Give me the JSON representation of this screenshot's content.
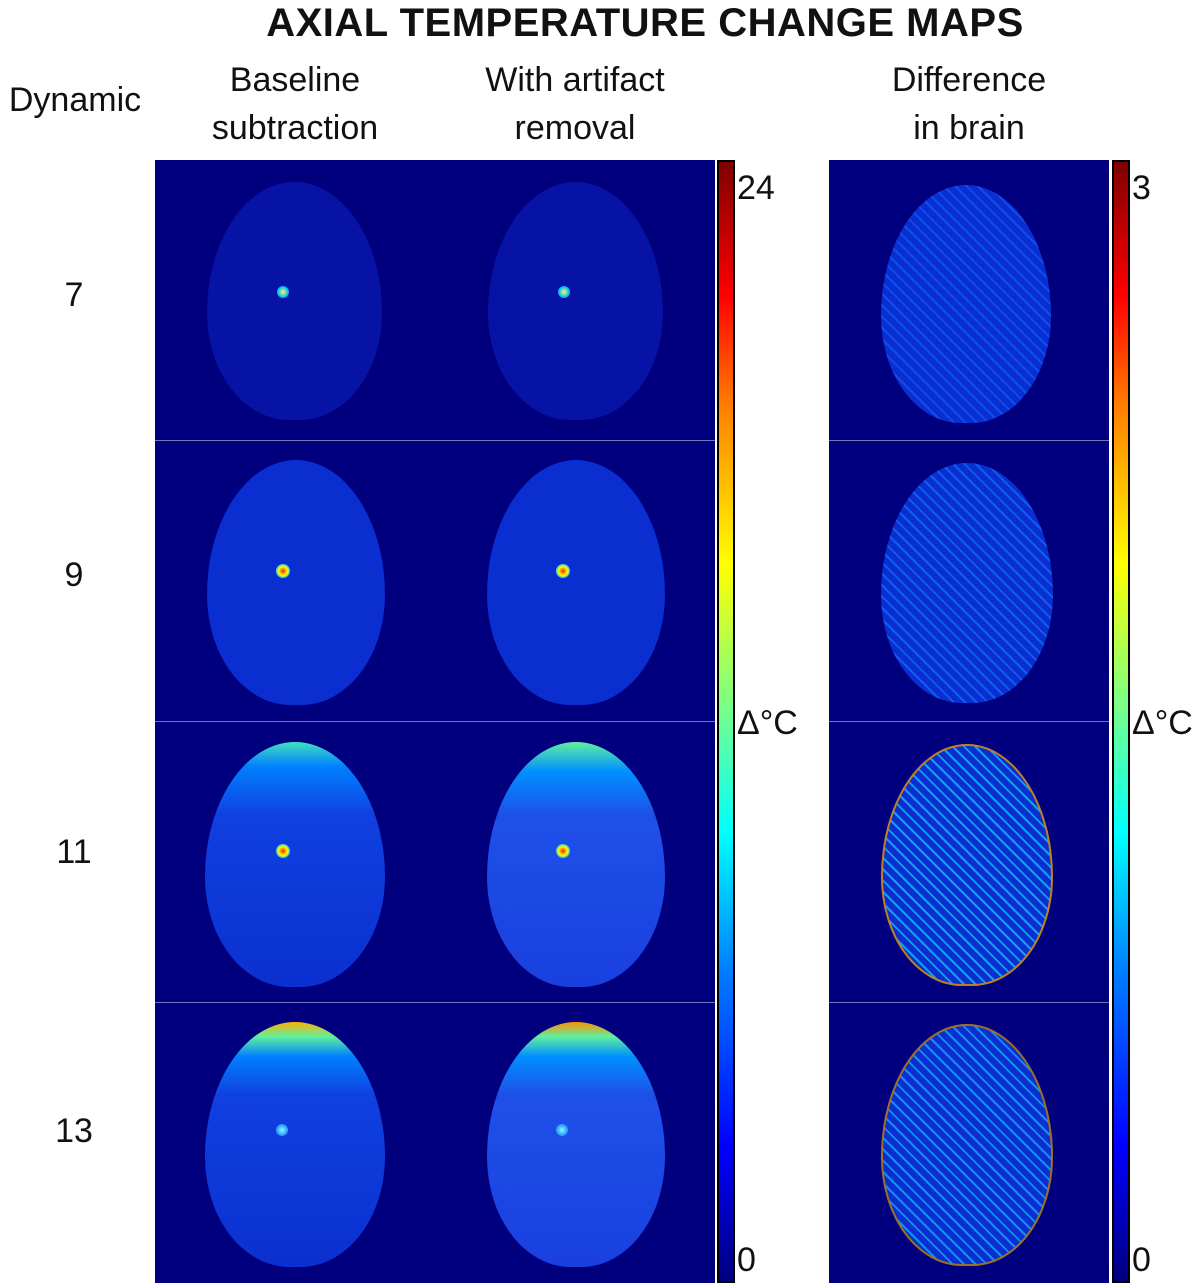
{
  "title": "AXIAL TEMPERATURE CHANGE MAPS",
  "row_header": "Dynamic",
  "columns": [
    {
      "line1": "Baseline",
      "line2": "subtraction"
    },
    {
      "line1": "With artifact",
      "line2": "removal"
    },
    {
      "line1": "Difference",
      "line2": "in brain"
    }
  ],
  "dynamics": [
    "7",
    "9",
    "11",
    "13"
  ],
  "colorbars": [
    {
      "max": "24",
      "min": "0",
      "unit": "Δ°C"
    },
    {
      "max": "3",
      "min": "0",
      "unit": "Δ°C"
    }
  ],
  "colors": {
    "background": "#00007f",
    "brain_tissue": "#0b2ed0",
    "hotspot": "#ff2000"
  }
}
